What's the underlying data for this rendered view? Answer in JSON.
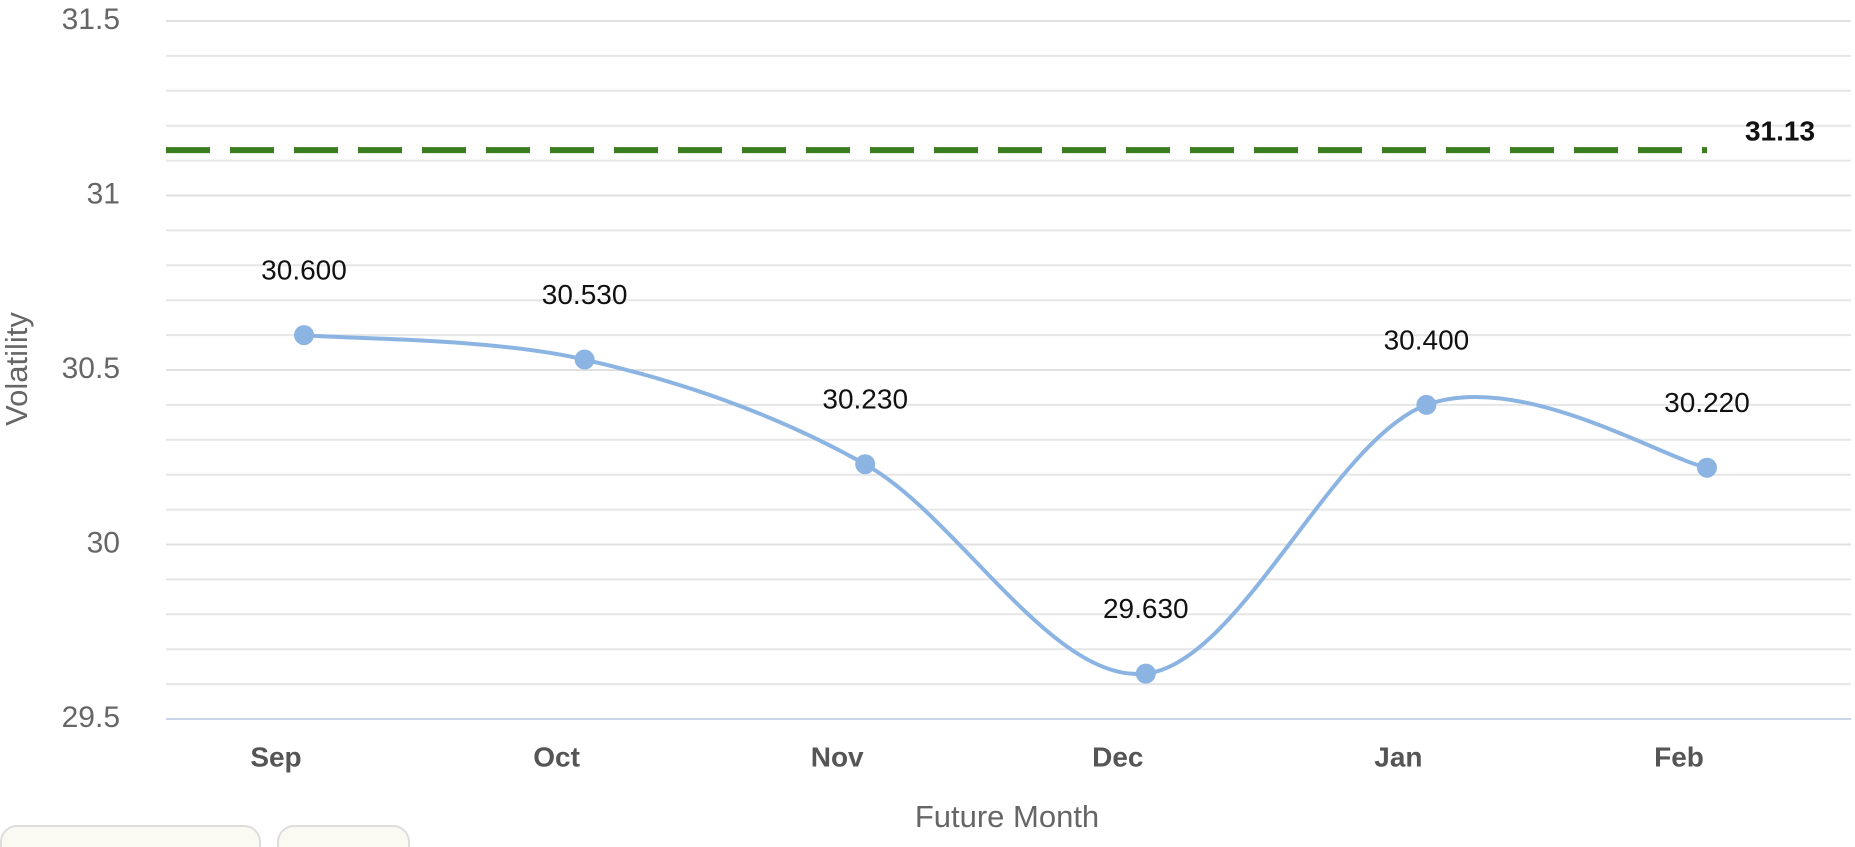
{
  "chart_data": {
    "type": "line",
    "x_label": "Future Month",
    "y_label": "Volatility",
    "categories": [
      "Sep",
      "Oct",
      "Nov",
      "Dec",
      "Jan",
      "Feb"
    ],
    "series": [
      {
        "name": "Volatility",
        "color": "#8cb4e3",
        "values": [
          30.6,
          30.53,
          30.23,
          29.63,
          30.4,
          30.22
        ],
        "value_labels": [
          "30.600",
          "30.530",
          "30.230",
          "29.630",
          "30.400",
          "30.220"
        ]
      }
    ],
    "reference_line": {
      "value": 31.13,
      "color": "#3a7d1e"
    },
    "ylim": [
      29.5,
      31.5
    ],
    "yticks": [
      29.5,
      30,
      30.5,
      31,
      31.5
    ],
    "minor_yticks": [
      29.6,
      29.7,
      29.8,
      29.9,
      30.1,
      30.2,
      30.3,
      30.4,
      30.6,
      30.7,
      30.8,
      30.9,
      31.1,
      31.2,
      31.3,
      31.4
    ],
    "grid": true
  }
}
